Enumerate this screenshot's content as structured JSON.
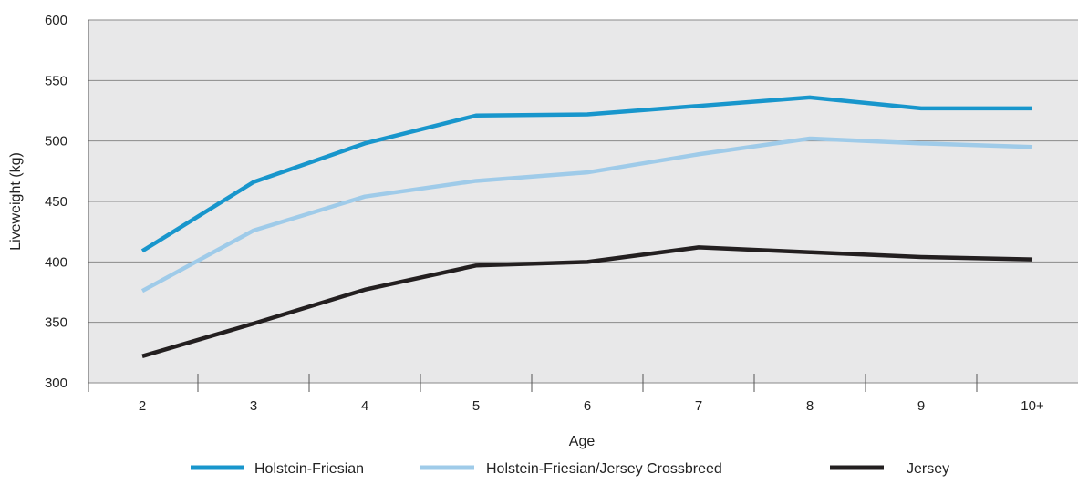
{
  "chart_data": {
    "type": "line",
    "xlabel": "Age",
    "ylabel": "Liveweight (kg)",
    "categories": [
      "2",
      "3",
      "4",
      "5",
      "6",
      "7",
      "8",
      "9",
      "10+"
    ],
    "ylim": [
      300,
      600
    ],
    "yticks": [
      300,
      350,
      400,
      450,
      500,
      550,
      600
    ],
    "grid": "horizontal",
    "legend_position": "bottom",
    "plot_background": "#e8e8e9",
    "series": [
      {
        "name": "Holstein-Friesian",
        "color": "#1896cc",
        "values": [
          409,
          466,
          498,
          521,
          522,
          529,
          536,
          527,
          527
        ]
      },
      {
        "name": "Holstein-Friesian/Jersey Crossbreed",
        "color": "#9fcbe9",
        "values": [
          376,
          426,
          454,
          467,
          474,
          489,
          502,
          498,
          495
        ]
      },
      {
        "name": "Jersey",
        "color": "#231f20",
        "values": [
          322,
          349,
          377,
          397,
          400,
          412,
          408,
          404,
          402
        ]
      }
    ]
  }
}
